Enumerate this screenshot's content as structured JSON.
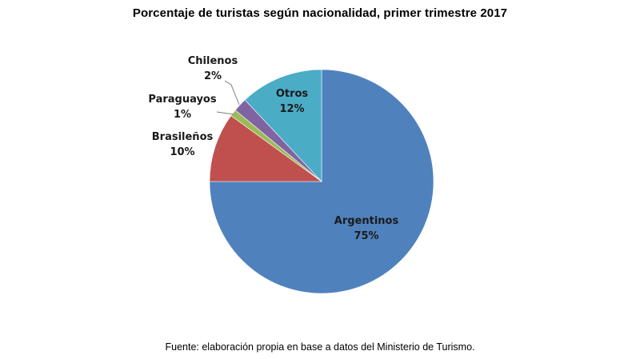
{
  "chart_data": {
    "type": "pie",
    "title": "Porcentaje de turistas según nacionalidad, primer trimestre 2017",
    "slices": [
      {
        "name": "Argentinos",
        "value": 75,
        "label": "75%",
        "color": "#4f81bd"
      },
      {
        "name": "Brasileños",
        "value": 10,
        "label": "10%",
        "color": "#c0504d"
      },
      {
        "name": "Paraguayos",
        "value": 1,
        "label": "1%",
        "color": "#9bbb59"
      },
      {
        "name": "Chilenos",
        "value": 2,
        "label": "2%",
        "color": "#8064a2"
      },
      {
        "name": "Otros",
        "value": 12,
        "label": "12%",
        "color": "#4bacc6"
      }
    ],
    "legend": "none",
    "start_angle_deg": 0,
    "direction": "clockwise"
  },
  "footer": {
    "source": "Fuente: elaboración propia en base a datos del Ministerio de Turismo."
  }
}
